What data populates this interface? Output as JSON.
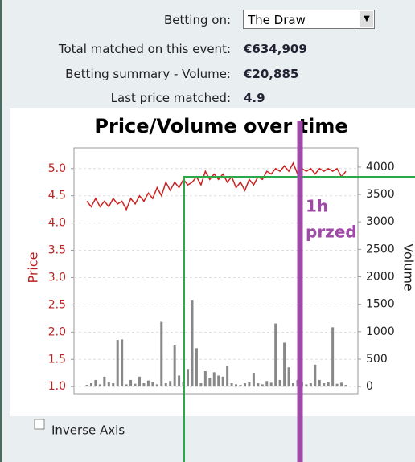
{
  "header": {
    "betting_on_label": "Betting on:",
    "selection": "The Draw",
    "rows": [
      {
        "label": "Total matched on this event:",
        "value": "€634,909"
      },
      {
        "label": "Betting summary - Volume:",
        "value": "€20,885"
      },
      {
        "label": "Last price matched:",
        "value": "4.9"
      }
    ]
  },
  "chart_data": {
    "type": "line-bar",
    "title": "Price/Volume over time",
    "ylabel": "Price",
    "y2label": "Volume",
    "ylim": [
      0.87,
      5.38
    ],
    "y2lim": [
      -130,
      4350
    ],
    "yticks": [
      {
        "value": 1,
        "label": "1.0"
      },
      1.5,
      {
        "value": 2,
        "label": "2.0"
      },
      2.5,
      {
        "value": 3,
        "label": "3.0"
      },
      3.5,
      {
        "value": 4,
        "label": "4.0"
      },
      4.5,
      {
        "value": 5,
        "label": "5.0"
      }
    ],
    "y2ticks": [
      0,
      500,
      1000,
      1500,
      2000,
      2500,
      3000,
      3500,
      4000
    ],
    "grid": true,
    "series": [
      {
        "name": "Price",
        "color": "#cc2222",
        "values": [
          4.4,
          4.3,
          4.45,
          4.3,
          4.4,
          4.3,
          4.45,
          4.35,
          4.4,
          4.25,
          4.45,
          4.35,
          4.5,
          4.4,
          4.55,
          4.45,
          4.65,
          4.5,
          4.75,
          4.6,
          4.75,
          4.65,
          4.8,
          4.7,
          4.75,
          4.85,
          4.7,
          4.95,
          4.8,
          4.9,
          4.8,
          4.9,
          4.75,
          4.85,
          4.65,
          4.75,
          4.6,
          4.8,
          4.7,
          4.85,
          4.8,
          4.95,
          4.9,
          5.0,
          4.95,
          5.05,
          4.95,
          5.1,
          4.9,
          5.0,
          4.95,
          5.0,
          4.9,
          5.0,
          4.95,
          5.0,
          4.95,
          5.0,
          4.85,
          4.95
        ]
      },
      {
        "name": "Volume",
        "color": "#888888",
        "axis": "y2",
        "values": [
          30,
          60,
          120,
          40,
          180,
          80,
          60,
          850,
          860,
          40,
          120,
          50,
          180,
          60,
          110,
          80,
          40,
          1180,
          60,
          100,
          750,
          200,
          80,
          320,
          1580,
          700,
          60,
          280,
          160,
          260,
          200,
          180,
          380,
          60,
          40,
          30,
          60,
          80,
          250,
          60,
          40,
          100,
          70,
          1150,
          120,
          800,
          350,
          60,
          120,
          80,
          40,
          60,
          400,
          120,
          60,
          80,
          1080,
          50,
          70,
          30
        ]
      }
    ]
  },
  "inverse_axis_label": "Inverse Axis",
  "annotation": {
    "line1": "1h",
    "line2": "przed"
  }
}
